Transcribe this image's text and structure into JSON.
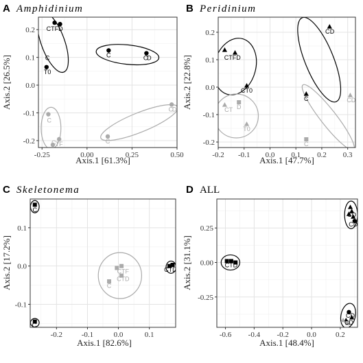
{
  "chart_data": [
    {
      "type": "scatter",
      "letter": "A",
      "title": "Amphidinium",
      "title_italic": true,
      "xlabel": "Axis.1   [61.3%]",
      "ylabel": "Axis.2   [26.5%]",
      "xlim": [
        -0.27,
        0.5
      ],
      "ylim": [
        -0.225,
        0.245
      ],
      "xticks": [
        -0.25,
        0.0,
        0.25,
        0.5
      ],
      "xtick_labels": [
        "-0.25",
        "0.00",
        "0.25",
        "0.50"
      ],
      "yticks": [
        -0.2,
        -0.1,
        0.0,
        0.1,
        0.2
      ],
      "ytick_labels": [
        "-0.2",
        "-0.1",
        "0.0",
        "0.1",
        "0.2"
      ],
      "grid": true,
      "series": [
        {
          "color": "#000000",
          "points": [
            {
              "x": -0.18,
              "y": 0.225,
              "shape": "circle"
            },
            {
              "x": -0.15,
              "y": 0.22,
              "shape": "circle"
            },
            {
              "x": -0.225,
              "y": 0.065,
              "shape": "circle"
            },
            {
              "x": 0.12,
              "y": 0.125,
              "shape": "circle"
            },
            {
              "x": 0.33,
              "y": 0.115,
              "shape": "circle"
            }
          ]
        },
        {
          "color": "#aaaaaa",
          "points": [
            {
              "x": -0.215,
              "y": -0.105,
              "shape": "circle"
            },
            {
              "x": -0.155,
              "y": -0.195,
              "shape": "circle"
            },
            {
              "x": -0.19,
              "y": -0.215,
              "shape": "circle"
            },
            {
              "x": 0.115,
              "y": -0.185,
              "shape": "circle"
            },
            {
              "x": 0.47,
              "y": -0.07,
              "shape": "circle"
            }
          ]
        }
      ],
      "labels": [
        {
          "text": "CTFD",
          "x": -0.18,
          "y": 0.205,
          "color": "#000000"
        },
        {
          "text": "C",
          "x": -0.22,
          "y": 0.1,
          "color": "#000000"
        },
        {
          "text": "T0",
          "x": -0.22,
          "y": 0.05,
          "color": "#000000"
        },
        {
          "text": "C",
          "x": 0.12,
          "y": 0.11,
          "color": "#000000"
        },
        {
          "text": "C",
          "x": 0.325,
          "y": 0.1,
          "color": "#000000"
        },
        {
          "text": "D",
          "x": 0.345,
          "y": 0.1,
          "color": "#000000"
        },
        {
          "text": "C",
          "x": -0.21,
          "y": -0.125,
          "color": "#aaaaaa"
        },
        {
          "text": "C",
          "x": 0.115,
          "y": -0.2,
          "color": "#aaaaaa"
        },
        {
          "text": "C",
          "x": 0.465,
          "y": -0.085,
          "color": "#aaaaaa"
        },
        {
          "text": "D",
          "x": 0.485,
          "y": -0.085,
          "color": "#aaaaaa"
        },
        {
          "text": "C",
          "x": -0.185,
          "y": -0.205,
          "color": "#aaaaaa"
        },
        {
          "text": "TF",
          "x": -0.155,
          "y": -0.21,
          "color": "#aaaaaa"
        }
      ],
      "ellipses": [
        {
          "cx": -0.19,
          "cy": 0.155,
          "rx": 0.065,
          "ry": 0.115,
          "angle": 20,
          "color": "#000000"
        },
        {
          "cx": 0.225,
          "cy": 0.11,
          "rx": 0.175,
          "ry": 0.035,
          "angle": -6,
          "color": "#000000"
        },
        {
          "cx": -0.2,
          "cy": -0.155,
          "rx": 0.055,
          "ry": 0.075,
          "angle": 0,
          "color": "#aaaaaa"
        },
        {
          "cx": 0.29,
          "cy": -0.135,
          "rx": 0.23,
          "ry": 0.035,
          "angle": 22,
          "color": "#aaaaaa"
        }
      ]
    },
    {
      "type": "scatter",
      "letter": "B",
      "title": "Peridinium",
      "title_italic": true,
      "xlabel": "Axis.1   [47.7%]",
      "ylabel": "Axis.2   [22.8%]",
      "xlim": [
        -0.2,
        0.33
      ],
      "ylim": [
        -0.22,
        0.255
      ],
      "xticks": [
        -0.2,
        -0.1,
        0.0,
        0.1,
        0.2,
        0.3
      ],
      "xtick_labels": [
        "-0.2",
        "-0.1",
        "0.0",
        "0.1",
        "0.2",
        "0.3"
      ],
      "yticks": [
        -0.2,
        -0.1,
        0.0,
        0.1,
        0.2
      ],
      "ytick_labels": [
        "-0.2",
        "-0.1",
        "0.0",
        "0.1",
        "0.2"
      ],
      "grid": true,
      "series": [
        {
          "color": "#000000",
          "points": [
            {
              "x": -0.175,
              "y": 0.135,
              "shape": "triangle"
            },
            {
              "x": -0.135,
              "y": 0.125,
              "shape": "triangle"
            },
            {
              "x": -0.09,
              "y": 0.005,
              "shape": "triangle"
            },
            {
              "x": 0.14,
              "y": -0.025,
              "shape": "triangle"
            },
            {
              "x": 0.23,
              "y": 0.22,
              "shape": "triangle"
            }
          ]
        },
        {
          "color": "#aaaaaa",
          "points": [
            {
              "x": -0.175,
              "y": -0.065,
              "shape": "triangle"
            },
            {
              "x": -0.12,
              "y": -0.055,
              "shape": "square"
            },
            {
              "x": -0.09,
              "y": -0.135,
              "shape": "triangle"
            },
            {
              "x": 0.14,
              "y": -0.19,
              "shape": "square"
            },
            {
              "x": 0.31,
              "y": -0.03,
              "shape": "triangle"
            }
          ]
        }
      ],
      "labels": [
        {
          "text": "CTFD",
          "x": -0.145,
          "y": 0.11,
          "color": "#000000"
        },
        {
          "text": "CT0",
          "x": -0.09,
          "y": -0.01,
          "color": "#000000"
        },
        {
          "text": "C",
          "x": 0.14,
          "y": -0.04,
          "color": "#000000"
        },
        {
          "text": "C",
          "x": 0.222,
          "y": 0.205,
          "color": "#000000"
        },
        {
          "text": "D",
          "x": 0.24,
          "y": 0.205,
          "color": "#000000"
        },
        {
          "text": "CT",
          "x": -0.16,
          "y": -0.08,
          "color": "#aaaaaa"
        },
        {
          "text": "D",
          "x": -0.12,
          "y": -0.07,
          "color": "#aaaaaa"
        },
        {
          "text": "T0",
          "x": -0.09,
          "y": -0.15,
          "color": "#aaaaaa"
        },
        {
          "text": "C",
          "x": 0.305,
          "y": -0.045,
          "color": "#aaaaaa"
        },
        {
          "text": "D",
          "x": 0.322,
          "y": -0.045,
          "color": "#aaaaaa"
        },
        {
          "text": "C",
          "x": 0.14,
          "y": -0.205,
          "color": "#aaaaaa"
        }
      ],
      "ellipses": [
        {
          "cx": -0.135,
          "cy": 0.075,
          "rx": 0.08,
          "ry": 0.105,
          "angle": -15,
          "color": "#000000"
        },
        {
          "cx": 0.19,
          "cy": 0.1,
          "rx": 0.055,
          "ry": 0.165,
          "angle": 22,
          "color": "#000000"
        },
        {
          "cx": -0.13,
          "cy": -0.105,
          "rx": 0.085,
          "ry": 0.08,
          "angle": 0,
          "color": "#aaaaaa"
        },
        {
          "cx": 0.225,
          "cy": -0.11,
          "rx": 0.03,
          "ry": 0.15,
          "angle": 38,
          "color": "#aaaaaa"
        }
      ]
    },
    {
      "type": "scatter",
      "letter": "C",
      "title": "Skeletonema",
      "title_italic": true,
      "xlabel": "Axis.1   [82.6%]",
      "ylabel": "Axis.2   [17.2%]",
      "xlim": [
        -0.285,
        0.185
      ],
      "ylim": [
        -0.16,
        0.175
      ],
      "xticks": [
        -0.2,
        -0.1,
        0.0,
        0.1
      ],
      "xtick_labels": [
        "-0.2",
        "-0.1",
        "0.0",
        "0.1"
      ],
      "yticks": [
        -0.1,
        0.0,
        0.1
      ],
      "ytick_labels": [
        "-0.1",
        "0.0",
        "0.1"
      ],
      "grid": true,
      "series": [
        {
          "color": "#000000",
          "points": [
            {
              "x": -0.27,
              "y": 0.16,
              "shape": "square"
            },
            {
              "x": -0.27,
              "y": -0.145,
              "shape": "square"
            },
            {
              "x": 0.165,
              "y": 0.0,
              "shape": "square"
            },
            {
              "x": 0.175,
              "y": 0.003,
              "shape": "square"
            }
          ]
        },
        {
          "color": "#aaaaaa",
          "points": [
            {
              "x": -0.005,
              "y": -0.005,
              "shape": "square"
            },
            {
              "x": 0.01,
              "y": 0.0,
              "shape": "square"
            },
            {
              "x": -0.03,
              "y": -0.04,
              "shape": "square"
            },
            {
              "x": 0.01,
              "y": -0.025,
              "shape": "square"
            }
          ]
        }
      ],
      "labels": [
        {
          "text": "C",
          "x": -0.27,
          "y": 0.148,
          "color": "#000000"
        },
        {
          "text": "C",
          "x": -0.272,
          "y": -0.153,
          "color": "#000000"
        },
        {
          "text": "CTD",
          "x": 0.168,
          "y": -0.008,
          "color": "#000000"
        },
        {
          "text": "CTF",
          "x": 0.015,
          "y": -0.012,
          "color": "#aaaaaa"
        },
        {
          "text": "CTD",
          "x": 0.015,
          "y": -0.032,
          "color": "#aaaaaa"
        },
        {
          "text": "C",
          "x": -0.03,
          "y": -0.05,
          "color": "#aaaaaa"
        }
      ],
      "ellipses": [
        {
          "cx": -0.27,
          "cy": 0.155,
          "rx": 0.014,
          "ry": 0.016,
          "angle": 0,
          "color": "#000000"
        },
        {
          "cx": -0.27,
          "cy": -0.148,
          "rx": 0.014,
          "ry": 0.011,
          "angle": 0,
          "color": "#000000"
        },
        {
          "cx": 0.17,
          "cy": -0.003,
          "rx": 0.016,
          "ry": 0.016,
          "angle": 0,
          "color": "#000000"
        },
        {
          "cx": 0.005,
          "cy": -0.025,
          "rx": 0.07,
          "ry": 0.06,
          "angle": 0,
          "color": "#aaaaaa"
        }
      ]
    },
    {
      "type": "scatter",
      "letter": "D",
      "title": "ALL",
      "title_italic": false,
      "xlabel": "Axis.1   [48.4%]",
      "ylabel": "Axis.2   [31.1%]",
      "xlim": [
        -0.66,
        0.32
      ],
      "ylim": [
        -0.47,
        0.46
      ],
      "xticks": [
        -0.6,
        -0.4,
        -0.2,
        0.0,
        0.2
      ],
      "xtick_labels": [
        "-0.6",
        "-0.4",
        "-0.2",
        "0.0",
        "0.2"
      ],
      "yticks": [
        -0.25,
        0.0,
        0.25
      ],
      "ytick_labels": [
        "-0.25",
        "0.00",
        "0.25"
      ],
      "grid": true,
      "series": [
        {
          "color": "#000000",
          "points": [
            {
              "x": 0.27,
              "y": 0.4,
              "shape": "triangle"
            },
            {
              "x": 0.28,
              "y": 0.37,
              "shape": "triangle"
            },
            {
              "x": 0.29,
              "y": 0.33,
              "shape": "triangle"
            },
            {
              "x": 0.3,
              "y": 0.3,
              "shape": "circle"
            },
            {
              "x": 0.26,
              "y": 0.35,
              "shape": "triangle"
            },
            {
              "x": -0.59,
              "y": 0.01,
              "shape": "square"
            },
            {
              "x": -0.56,
              "y": 0.01,
              "shape": "square"
            },
            {
              "x": -0.53,
              "y": 0.0,
              "shape": "square"
            },
            {
              "x": 0.26,
              "y": -0.36,
              "shape": "circle"
            },
            {
              "x": 0.28,
              "y": -0.4,
              "shape": "triangle"
            },
            {
              "x": 0.24,
              "y": -0.42,
              "shape": "triangle"
            }
          ]
        },
        {
          "color": "#aaaaaa",
          "points": [
            {
              "x": 0.22,
              "y": -0.42,
              "shape": "triangle"
            },
            {
              "x": 0.25,
              "y": -0.44,
              "shape": "square"
            }
          ]
        }
      ],
      "labels": [
        {
          "text": "CD",
          "x": 0.28,
          "y": 0.35,
          "color": "#000000"
        },
        {
          "text": "CD",
          "x": 0.29,
          "y": 0.28,
          "color": "#000000"
        },
        {
          "text": "CTD",
          "x": -0.56,
          "y": -0.015,
          "color": "#000000"
        },
        {
          "text": "CD",
          "x": 0.27,
          "y": -0.38,
          "color": "#000000"
        },
        {
          "text": "CD",
          "x": 0.26,
          "y": -0.43,
          "color": "#000000"
        }
      ],
      "ellipses": [
        {
          "cx": 0.275,
          "cy": 0.345,
          "rx": 0.045,
          "ry": 0.1,
          "angle": 0,
          "color": "#000000"
        },
        {
          "cx": -0.565,
          "cy": 0.0,
          "rx": 0.065,
          "ry": 0.055,
          "angle": 0,
          "color": "#000000"
        },
        {
          "cx": 0.255,
          "cy": -0.385,
          "rx": 0.05,
          "ry": 0.09,
          "angle": -12,
          "color": "#000000"
        }
      ]
    }
  ]
}
